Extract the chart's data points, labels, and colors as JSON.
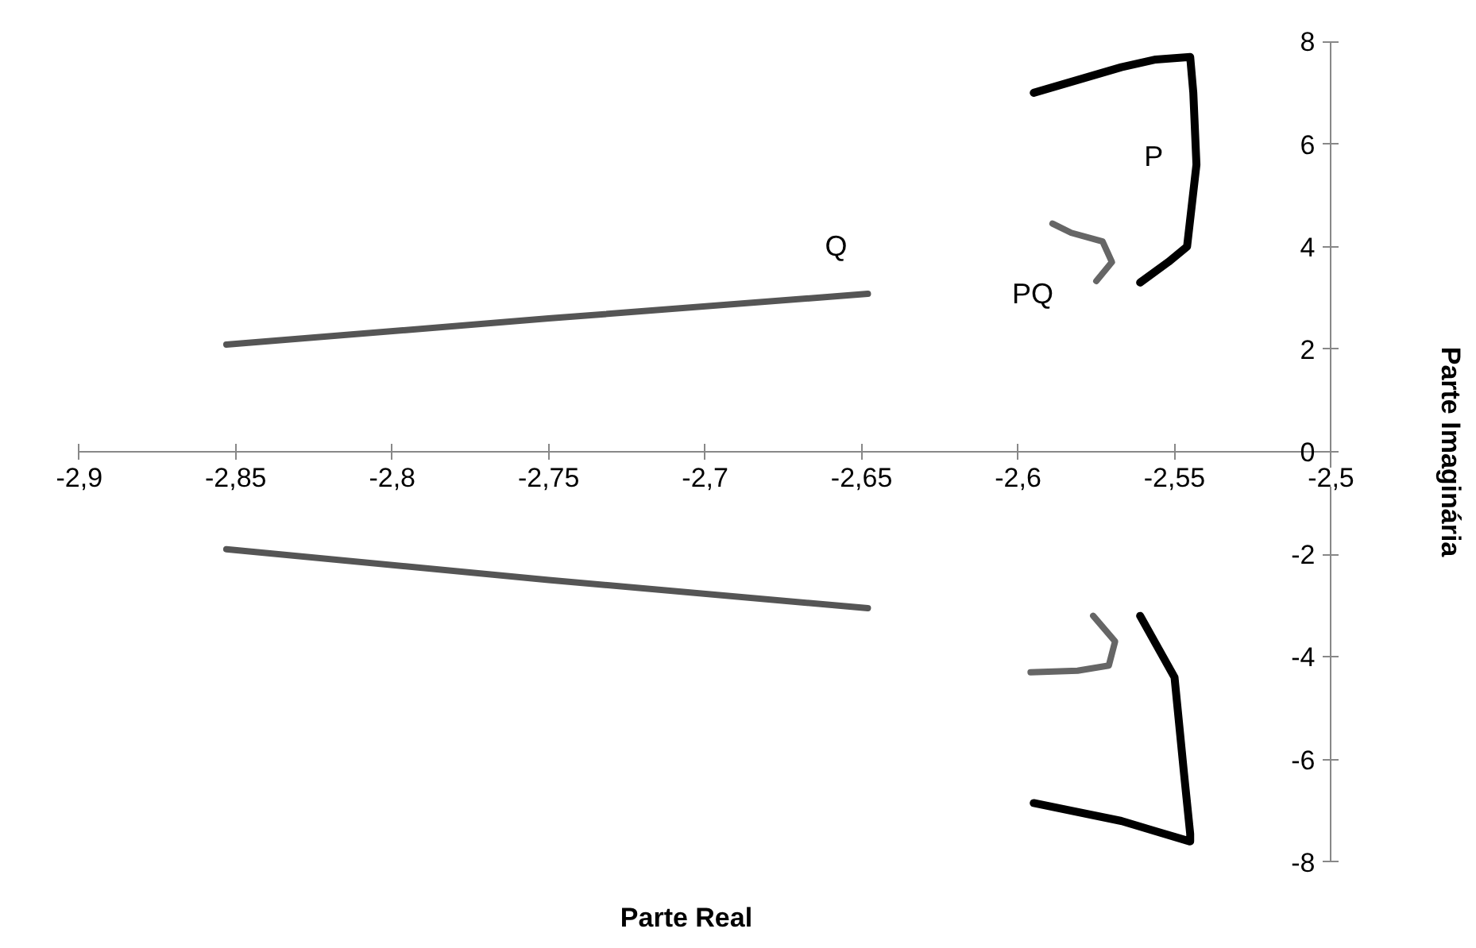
{
  "chart_data": {
    "type": "line",
    "xlabel": "Parte Real",
    "ylabel": "Parte Imaginária",
    "xlim": [
      -2.9,
      -2.5
    ],
    "ylim": [
      -8,
      8
    ],
    "xticks": [
      {
        "value": -2.9,
        "label": "-2,9"
      },
      {
        "value": -2.85,
        "label": "-2,85"
      },
      {
        "value": -2.8,
        "label": "-2,8"
      },
      {
        "value": -2.75,
        "label": "-2,75"
      },
      {
        "value": -2.7,
        "label": "-2,7"
      },
      {
        "value": -2.65,
        "label": "-2,65"
      },
      {
        "value": -2.6,
        "label": "-2,6"
      },
      {
        "value": -2.55,
        "label": "-2,55"
      },
      {
        "value": -2.5,
        "label": "-2,5"
      }
    ],
    "yticks": [
      -8,
      -6,
      -4,
      -2,
      0,
      2,
      4,
      6,
      8
    ],
    "grid": false,
    "legend": false,
    "marker": "none",
    "line_style": "solid",
    "series": [
      {
        "name": "P",
        "color": "#000000",
        "x": [
          -2.561,
          -2.552,
          -2.546,
          -2.543,
          -2.544,
          -2.545,
          -2.556,
          -2.567,
          -2.595
        ],
        "values": [
          3.3,
          3.7,
          4.0,
          5.6,
          7.0,
          7.7,
          7.65,
          7.5,
          7.0
        ]
      },
      {
        "color": "#000000",
        "x": [
          -2.561,
          -2.55,
          -2.547,
          -2.545,
          -2.545,
          -2.556,
          -2.567,
          -2.595
        ],
        "values": [
          -3.2,
          -4.4,
          -6.26,
          -7.45,
          -7.6,
          -7.4,
          -7.2,
          -6.85
        ]
      },
      {
        "name": "Q",
        "color": "#555555",
        "x": [
          -2.853,
          -2.75,
          -2.648
        ],
        "values": [
          2.09,
          2.6,
          3.08
        ]
      },
      {
        "color": "#555555",
        "x": [
          -2.853,
          -2.75,
          -2.648
        ],
        "values": [
          -1.9,
          -2.5,
          -3.05
        ]
      },
      {
        "name": "PQ",
        "color": "#666666",
        "x": [
          -2.575,
          -2.57,
          -2.573,
          -2.583,
          -2.589
        ],
        "values": [
          3.33,
          3.7,
          4.1,
          4.27,
          4.45
        ]
      },
      {
        "color": "#666666",
        "x": [
          -2.576,
          -2.569,
          -2.571,
          -2.581,
          -2.596
        ],
        "values": [
          -3.2,
          -3.7,
          -4.17,
          -4.27,
          -4.3
        ]
      }
    ]
  }
}
